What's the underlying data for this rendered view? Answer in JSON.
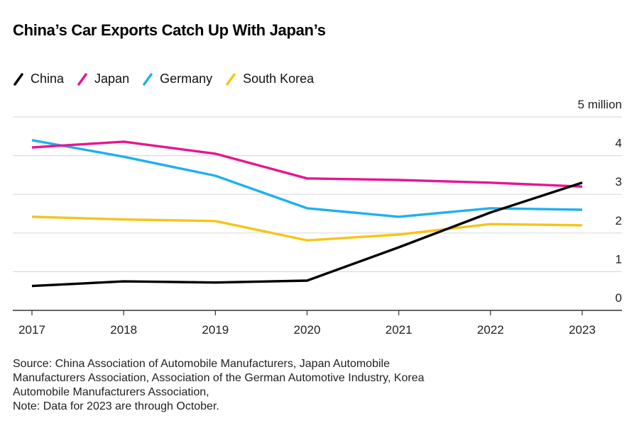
{
  "chart_data": {
    "type": "line",
    "title": "China’s Car Exports Catch Up With Japan’s",
    "xlabel": "",
    "ylabel": "",
    "y_unit_label": "5 million",
    "x": [
      "2017",
      "2018",
      "2019",
      "2020",
      "2021",
      "2022",
      "2023"
    ],
    "ylim": [
      0,
      5
    ],
    "yticks": [
      0,
      1,
      2,
      3,
      4,
      5
    ],
    "ytick_labels": [
      "0",
      "1",
      "2",
      "3",
      "4",
      "5 million"
    ],
    "grid": true,
    "legend_position": "top-left",
    "series": [
      {
        "name": "China",
        "color": "#000000",
        "values": [
          0.63,
          0.75,
          0.72,
          0.77,
          1.63,
          2.53,
          3.3
        ]
      },
      {
        "name": "Japan",
        "color": "#e8158f",
        "values": [
          4.21,
          4.36,
          4.05,
          3.41,
          3.37,
          3.3,
          3.2
        ]
      },
      {
        "name": "Germany",
        "color": "#1fb0ee",
        "values": [
          4.4,
          3.97,
          3.48,
          2.64,
          2.42,
          2.64,
          2.6
        ]
      },
      {
        "name": "South Korea",
        "color": "#f5c518",
        "values": [
          2.42,
          2.35,
          2.31,
          1.81,
          1.96,
          2.23,
          2.2
        ]
      }
    ]
  },
  "legend": {
    "items": [
      {
        "label": "China",
        "color": "#000000"
      },
      {
        "label": "Japan",
        "color": "#e8158f"
      },
      {
        "label": "Germany",
        "color": "#1fb0ee"
      },
      {
        "label": "South Korea",
        "color": "#f5c518"
      }
    ]
  },
  "footer": {
    "source_lines": [
      "Source: China Association of Automobile Manufacturers, Japan Automobile",
      "Manufacturers Association, Association of the German Automotive Industry, Korea",
      "Automobile Manufacturers Association,",
      "Note: Data for 2023 are through October."
    ]
  }
}
